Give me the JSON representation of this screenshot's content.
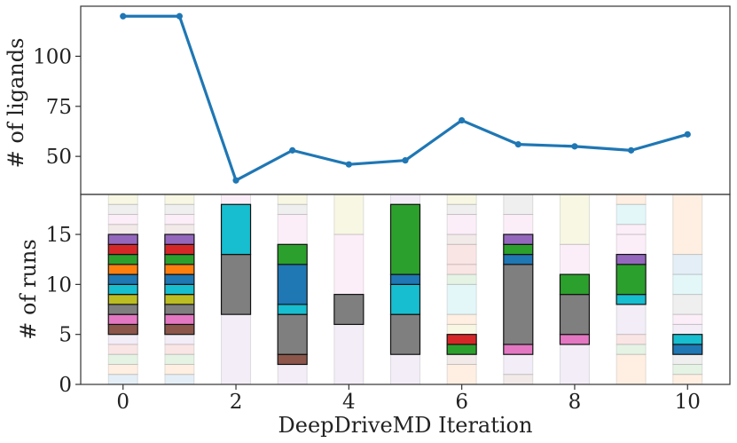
{
  "colors": {
    "line": "#1f77b4",
    "palette": [
      "#1f77b4",
      "#ff7f0e",
      "#2ca02c",
      "#d62728",
      "#9467bd",
      "#8c564b",
      "#e377c2",
      "#7f7f7f",
      "#bcbd22",
      "#17becf"
    ],
    "ghost_fill_opacity": 0.12
  },
  "chart_data": [
    {
      "id": "ligands",
      "type": "line",
      "xlabel": "",
      "ylabel": "# of ligands",
      "x": [
        0,
        1,
        2,
        3,
        4,
        5,
        6,
        7,
        8,
        9,
        10
      ],
      "y": [
        120,
        120,
        38,
        53,
        46,
        48,
        68,
        56,
        55,
        53,
        61
      ],
      "xlim": [
        -0.75,
        10.75
      ],
      "ylim": [
        31,
        125
      ],
      "yticks": [
        50,
        75,
        100
      ],
      "marker": "circle",
      "grid": false
    },
    {
      "id": "runs",
      "type": "bar",
      "subtype": "stacked",
      "xlabel": "DeepDriveMD Iteration",
      "ylabel": "# of runs",
      "x": [
        0,
        1,
        2,
        3,
        4,
        5,
        6,
        7,
        8,
        9,
        10
      ],
      "xticks": [
        0,
        2,
        4,
        6,
        8,
        10
      ],
      "xlim": [
        -0.75,
        10.75
      ],
      "ylim": [
        0,
        19
      ],
      "yticks": [
        0,
        5,
        10,
        15
      ],
      "grid": false,
      "columns": [
        {
          "x": 0,
          "highlight": [
            {
              "from": 5,
              "to": 6,
              "color": 5
            },
            {
              "from": 6,
              "to": 7,
              "color": 6
            },
            {
              "from": 7,
              "to": 8,
              "color": 7
            },
            {
              "from": 8,
              "to": 9,
              "color": 8
            },
            {
              "from": 9,
              "to": 10,
              "color": 9
            },
            {
              "from": 10,
              "to": 11,
              "color": 0
            },
            {
              "from": 11,
              "to": 12,
              "color": 1
            },
            {
              "from": 12,
              "to": 13,
              "color": 2
            },
            {
              "from": 13,
              "to": 14,
              "color": 3
            },
            {
              "from": 14,
              "to": 15,
              "color": 4
            }
          ],
          "ghost": [
            {
              "from": 0,
              "to": 1,
              "color": 0
            },
            {
              "from": 1,
              "to": 2,
              "color": 1
            },
            {
              "from": 2,
              "to": 3,
              "color": 2
            },
            {
              "from": 3,
              "to": 4,
              "color": 3
            },
            {
              "from": 4,
              "to": 5,
              "color": 4
            },
            {
              "from": 15,
              "to": 16,
              "color": 5
            },
            {
              "from": 16,
              "to": 17,
              "color": 6
            },
            {
              "from": 17,
              "to": 18,
              "color": 7
            },
            {
              "from": 18,
              "to": 19,
              "color": 8
            }
          ]
        },
        {
          "x": 1,
          "highlight": [
            {
              "from": 5,
              "to": 6,
              "color": 5
            },
            {
              "from": 6,
              "to": 7,
              "color": 6
            },
            {
              "from": 7,
              "to": 8,
              "color": 7
            },
            {
              "from": 8,
              "to": 9,
              "color": 8
            },
            {
              "from": 9,
              "to": 10,
              "color": 9
            },
            {
              "from": 10,
              "to": 11,
              "color": 0
            },
            {
              "from": 11,
              "to": 12,
              "color": 1
            },
            {
              "from": 12,
              "to": 13,
              "color": 2
            },
            {
              "from": 13,
              "to": 14,
              "color": 3
            },
            {
              "from": 14,
              "to": 15,
              "color": 4
            }
          ],
          "ghost": [
            {
              "from": 0,
              "to": 1,
              "color": 0
            },
            {
              "from": 1,
              "to": 2,
              "color": 1
            },
            {
              "from": 2,
              "to": 3,
              "color": 2
            },
            {
              "from": 3,
              "to": 4,
              "color": 3
            },
            {
              "from": 4,
              "to": 5,
              "color": 4
            },
            {
              "from": 15,
              "to": 16,
              "color": 5
            },
            {
              "from": 16,
              "to": 17,
              "color": 6
            },
            {
              "from": 17,
              "to": 18,
              "color": 7
            },
            {
              "from": 18,
              "to": 19,
              "color": 8
            }
          ]
        },
        {
          "x": 2,
          "highlight": [
            {
              "from": 7,
              "to": 13,
              "color": 7
            },
            {
              "from": 13,
              "to": 18,
              "color": 9
            }
          ],
          "ghost": [
            {
              "from": 0,
              "to": 7,
              "color": 4
            },
            {
              "from": 18,
              "to": 19,
              "color": 6
            }
          ]
        },
        {
          "x": 3,
          "highlight": [
            {
              "from": 2,
              "to": 3,
              "color": 5
            },
            {
              "from": 3,
              "to": 7,
              "color": 7
            },
            {
              "from": 7,
              "to": 8,
              "color": 9
            },
            {
              "from": 8,
              "to": 12,
              "color": 0
            },
            {
              "from": 12,
              "to": 14,
              "color": 2
            }
          ],
          "ghost": [
            {
              "from": 0,
              "to": 2,
              "color": 4
            },
            {
              "from": 14,
              "to": 17,
              "color": 6
            },
            {
              "from": 17,
              "to": 18,
              "color": 7
            },
            {
              "from": 18,
              "to": 19,
              "color": 8
            }
          ]
        },
        {
          "x": 4,
          "highlight": [
            {
              "from": 6,
              "to": 9,
              "color": 7
            }
          ],
          "ghost": [
            {
              "from": 0,
              "to": 6,
              "color": 4
            },
            {
              "from": 9,
              "to": 15,
              "color": 6
            },
            {
              "from": 15,
              "to": 19,
              "color": 8
            }
          ]
        },
        {
          "x": 5,
          "highlight": [
            {
              "from": 3,
              "to": 7,
              "color": 7
            },
            {
              "from": 7,
              "to": 10,
              "color": 9
            },
            {
              "from": 10,
              "to": 11,
              "color": 0
            },
            {
              "from": 11,
              "to": 18,
              "color": 2
            }
          ],
          "ghost": [
            {
              "from": 0,
              "to": 3,
              "color": 4
            },
            {
              "from": 18,
              "to": 19,
              "color": 4
            }
          ]
        },
        {
          "x": 6,
          "highlight": [
            {
              "from": 3,
              "to": 4,
              "color": 2
            },
            {
              "from": 4,
              "to": 5,
              "color": 3
            }
          ],
          "ghost": [
            {
              "from": 0,
              "to": 2,
              "color": 1
            },
            {
              "from": 2,
              "to": 3,
              "color": 5
            },
            {
              "from": 5,
              "to": 6,
              "color": 8
            },
            {
              "from": 6,
              "to": 7,
              "color": 1
            },
            {
              "from": 7,
              "to": 10,
              "color": 9
            },
            {
              "from": 10,
              "to": 11,
              "color": 2
            },
            {
              "from": 11,
              "to": 12,
              "color": 3
            },
            {
              "from": 12,
              "to": 14,
              "color": 3
            },
            {
              "from": 14,
              "to": 15,
              "color": 5
            },
            {
              "from": 15,
              "to": 17,
              "color": 6
            },
            {
              "from": 17,
              "to": 18,
              "color": 7
            },
            {
              "from": 18,
              "to": 19,
              "color": 8
            }
          ]
        },
        {
          "x": 7,
          "highlight": [
            {
              "from": 3,
              "to": 4,
              "color": 6
            },
            {
              "from": 4,
              "to": 12,
              "color": 7
            },
            {
              "from": 12,
              "to": 13,
              "color": 0
            },
            {
              "from": 13,
              "to": 14,
              "color": 2
            },
            {
              "from": 14,
              "to": 15,
              "color": 4
            }
          ],
          "ghost": [
            {
              "from": 0,
              "to": 1,
              "color": 5
            },
            {
              "from": 1,
              "to": 3,
              "color": 4
            },
            {
              "from": 15,
              "to": 17,
              "color": 6
            },
            {
              "from": 17,
              "to": 19,
              "color": 7
            }
          ]
        },
        {
          "x": 8,
          "highlight": [
            {
              "from": 4,
              "to": 5,
              "color": 6
            },
            {
              "from": 5,
              "to": 9,
              "color": 7
            },
            {
              "from": 9,
              "to": 11,
              "color": 2
            }
          ],
          "ghost": [
            {
              "from": 0,
              "to": 4,
              "color": 4
            },
            {
              "from": 11,
              "to": 14,
              "color": 6
            },
            {
              "from": 14,
              "to": 19,
              "color": 8
            }
          ]
        },
        {
          "x": 9,
          "highlight": [
            {
              "from": 8,
              "to": 9,
              "color": 9
            },
            {
              "from": 9,
              "to": 12,
              "color": 2
            },
            {
              "from": 12,
              "to": 13,
              "color": 4
            }
          ],
          "ghost": [
            {
              "from": 0,
              "to": 3,
              "color": 1
            },
            {
              "from": 3,
              "to": 4,
              "color": 2
            },
            {
              "from": 4,
              "to": 5,
              "color": 3
            },
            {
              "from": 5,
              "to": 8,
              "color": 4
            },
            {
              "from": 13,
              "to": 15,
              "color": 6
            },
            {
              "from": 15,
              "to": 16,
              "color": 6
            },
            {
              "from": 16,
              "to": 18,
              "color": 9
            },
            {
              "from": 18,
              "to": 19,
              "color": 1
            }
          ]
        },
        {
          "x": 10,
          "highlight": [
            {
              "from": 3,
              "to": 4,
              "color": 0
            },
            {
              "from": 4,
              "to": 5,
              "color": 9
            },
            {
              "from": 5,
              "to": 5,
              "color": 2
            }
          ],
          "ghost": [
            {
              "from": 0,
              "to": 1,
              "color": 1
            },
            {
              "from": 1,
              "to": 2,
              "color": 2
            },
            {
              "from": 2,
              "to": 3,
              "color": 7
            },
            {
              "from": 5,
              "to": 6,
              "color": 4
            },
            {
              "from": 6,
              "to": 7,
              "color": 6
            },
            {
              "from": 7,
              "to": 9,
              "color": 7
            },
            {
              "from": 9,
              "to": 11,
              "color": 9
            },
            {
              "from": 11,
              "to": 13,
              "color": 0
            },
            {
              "from": 13,
              "to": 19,
              "color": 1
            }
          ]
        }
      ]
    }
  ]
}
